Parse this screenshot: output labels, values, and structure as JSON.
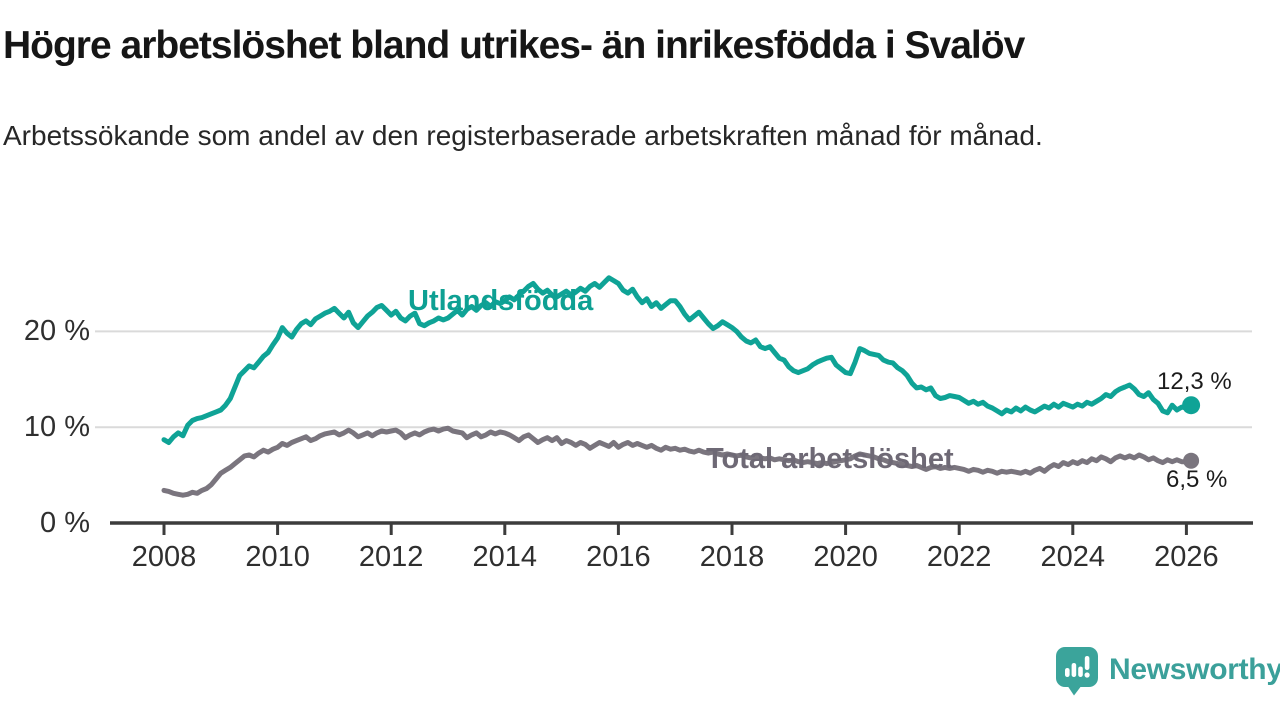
{
  "header": {
    "title": "Högre arbetslöshet bland utrikes- än inrikesfödda i Svalöv",
    "subtitle": "Arbetssökande som andel av den registerbaserade arbetskraften månad för månad."
  },
  "chart_data": {
    "type": "line",
    "title": "Högre arbetslöshet bland utrikes- än inrikesfödda i Svalöv",
    "unit": "%",
    "x_start_year": 2008,
    "x_frequency": "monthly",
    "grid": "horizontal",
    "ylim": [
      0,
      27.5
    ],
    "xlim": [
      2007.1,
      2027.2
    ],
    "x_axis": {
      "ticks": [
        {
          "year": 2008,
          "label": "2008"
        },
        {
          "year": 2010,
          "label": "2010"
        },
        {
          "year": 2012,
          "label": "2012"
        },
        {
          "year": 2014,
          "label": "2014"
        },
        {
          "year": 2016,
          "label": "2016"
        },
        {
          "year": 2018,
          "label": "2018"
        },
        {
          "year": 2020,
          "label": "2020"
        },
        {
          "year": 2022,
          "label": "2022"
        },
        {
          "year": 2024,
          "label": "2024"
        },
        {
          "year": 2026,
          "label": "2026"
        }
      ]
    },
    "y_axis": {
      "ticks": [
        {
          "value": 0,
          "label": "0 %"
        },
        {
          "value": 10,
          "label": "10 %"
        },
        {
          "value": 20,
          "label": "20 %"
        }
      ]
    },
    "colors": {
      "utlandsfodda": "#0FA396",
      "total": "#7A757E",
      "gridline": "#DADADA",
      "axis": "#3C3C3C"
    },
    "series": [
      {
        "name": "Utlandsfödda",
        "color": "#0FA396",
        "label_color": "#0EA093",
        "end_label": "12,3 %",
        "end_value": 12.3,
        "values": [
          8.7,
          8.4,
          9.0,
          9.4,
          9.1,
          10.2,
          10.7,
          10.9,
          11.0,
          11.2,
          11.4,
          11.6,
          11.8,
          12.3,
          13.0,
          14.2,
          15.4,
          15.9,
          16.4,
          16.2,
          16.8,
          17.4,
          17.8,
          18.6,
          19.3,
          20.4,
          19.8,
          19.4,
          20.2,
          20.8,
          21.1,
          20.7,
          21.3,
          21.6,
          21.9,
          22.1,
          22.4,
          21.9,
          21.4,
          22.0,
          20.9,
          20.4,
          21.0,
          21.6,
          22.0,
          22.5,
          22.7,
          22.2,
          21.7,
          22.1,
          21.4,
          21.1,
          21.6,
          21.9,
          20.8,
          20.6,
          20.9,
          21.1,
          21.4,
          21.2,
          21.4,
          21.8,
          22.2,
          21.7,
          22.3,
          22.6,
          22.2,
          22.7,
          23.0,
          22.6,
          23.1,
          22.9,
          23.2,
          23.6,
          23.3,
          23.8,
          24.2,
          24.7,
          25.0,
          24.4,
          24.0,
          24.3,
          23.8,
          23.6,
          23.9,
          24.2,
          23.8,
          24.1,
          24.5,
          24.2,
          24.7,
          25.0,
          24.6,
          25.1,
          25.6,
          25.3,
          25.0,
          24.3,
          24.0,
          24.4,
          23.6,
          23.0,
          23.4,
          22.6,
          23.0,
          22.4,
          22.8,
          23.2,
          23.2,
          22.6,
          21.8,
          21.2,
          21.6,
          22.0,
          21.4,
          20.8,
          20.3,
          20.6,
          21.0,
          20.7,
          20.4,
          20.0,
          19.4,
          19.0,
          18.8,
          19.1,
          18.4,
          18.2,
          18.4,
          17.8,
          17.2,
          17.0,
          16.3,
          15.9,
          15.7,
          15.9,
          16.1,
          16.5,
          16.8,
          17.0,
          17.2,
          17.3,
          16.5,
          16.1,
          15.7,
          15.6,
          16.8,
          18.2,
          18.0,
          17.7,
          17.6,
          17.5,
          17.0,
          16.8,
          16.7,
          16.2,
          15.9,
          15.4,
          14.6,
          14.1,
          14.2,
          13.9,
          14.1,
          13.3,
          13.0,
          13.1,
          13.3,
          13.2,
          13.1,
          12.8,
          12.5,
          12.7,
          12.4,
          12.6,
          12.2,
          12.0,
          11.7,
          11.4,
          11.8,
          11.6,
          12.0,
          11.7,
          12.1,
          11.8,
          11.6,
          11.9,
          12.2,
          12.0,
          12.4,
          12.1,
          12.5,
          12.3,
          12.1,
          12.4,
          12.2,
          12.6,
          12.4,
          12.7,
          13.0,
          13.4,
          13.2,
          13.7,
          14.0,
          14.2,
          14.4,
          14.0,
          13.4,
          13.2,
          13.6,
          12.9,
          12.5,
          11.7,
          11.5,
          12.3,
          11.8,
          12.1,
          12.0,
          12.3
        ]
      },
      {
        "name": "Total arbetslöshet",
        "color": "#7A757E",
        "label_color": "#6E6975",
        "end_label": "6,5 %",
        "end_value": 6.5,
        "values": [
          3.4,
          3.3,
          3.1,
          3.0,
          2.9,
          3.0,
          3.2,
          3.1,
          3.4,
          3.6,
          4.0,
          4.6,
          5.2,
          5.5,
          5.8,
          6.2,
          6.6,
          7.0,
          7.1,
          6.9,
          7.3,
          7.6,
          7.4,
          7.7,
          7.9,
          8.3,
          8.1,
          8.4,
          8.6,
          8.8,
          9.0,
          8.6,
          8.8,
          9.1,
          9.3,
          9.4,
          9.5,
          9.2,
          9.4,
          9.7,
          9.4,
          9.0,
          9.2,
          9.4,
          9.1,
          9.4,
          9.6,
          9.5,
          9.6,
          9.7,
          9.4,
          8.9,
          9.2,
          9.4,
          9.2,
          9.5,
          9.7,
          9.8,
          9.6,
          9.8,
          9.9,
          9.6,
          9.5,
          9.4,
          8.9,
          9.2,
          9.4,
          9.0,
          9.2,
          9.5,
          9.3,
          9.5,
          9.4,
          9.2,
          8.9,
          8.6,
          9.0,
          9.2,
          8.8,
          8.4,
          8.7,
          8.9,
          8.6,
          8.9,
          8.3,
          8.6,
          8.4,
          8.1,
          8.4,
          8.2,
          7.8,
          8.1,
          8.4,
          8.2,
          8.0,
          8.4,
          7.9,
          8.2,
          8.4,
          8.1,
          8.3,
          8.1,
          7.9,
          8.1,
          7.8,
          7.6,
          7.9,
          7.7,
          7.8,
          7.6,
          7.7,
          7.5,
          7.4,
          7.6,
          7.4,
          7.3,
          7.4,
          7.2,
          7.1,
          7.2,
          7.1,
          7.0,
          7.1,
          6.9,
          6.8,
          6.9,
          6.8,
          6.7,
          6.8,
          6.6,
          6.7,
          6.6,
          6.5,
          6.6,
          6.4,
          6.3,
          6.4,
          6.3,
          6.2,
          6.3,
          6.2,
          6.3,
          6.4,
          6.5,
          6.6,
          6.7,
          7.0,
          7.2,
          7.1,
          7.0,
          6.9,
          6.7,
          6.6,
          6.4,
          6.3,
          6.2,
          6.1,
          6.0,
          5.9,
          6.0,
          5.8,
          5.6,
          5.8,
          5.9,
          5.7,
          5.8,
          5.7,
          5.8,
          5.7,
          5.6,
          5.4,
          5.6,
          5.5,
          5.3,
          5.5,
          5.4,
          5.2,
          5.4,
          5.3,
          5.4,
          5.3,
          5.2,
          5.4,
          5.2,
          5.5,
          5.7,
          5.4,
          5.8,
          6.1,
          5.9,
          6.3,
          6.1,
          6.4,
          6.2,
          6.5,
          6.3,
          6.7,
          6.5,
          6.9,
          6.7,
          6.4,
          6.8,
          7.0,
          6.8,
          7.0,
          6.8,
          7.1,
          6.9,
          6.6,
          6.8,
          6.5,
          6.3,
          6.6,
          6.4,
          6.6,
          6.4,
          6.4,
          6.5
        ]
      }
    ]
  },
  "footer": {
    "brand": "Newsworthy"
  }
}
